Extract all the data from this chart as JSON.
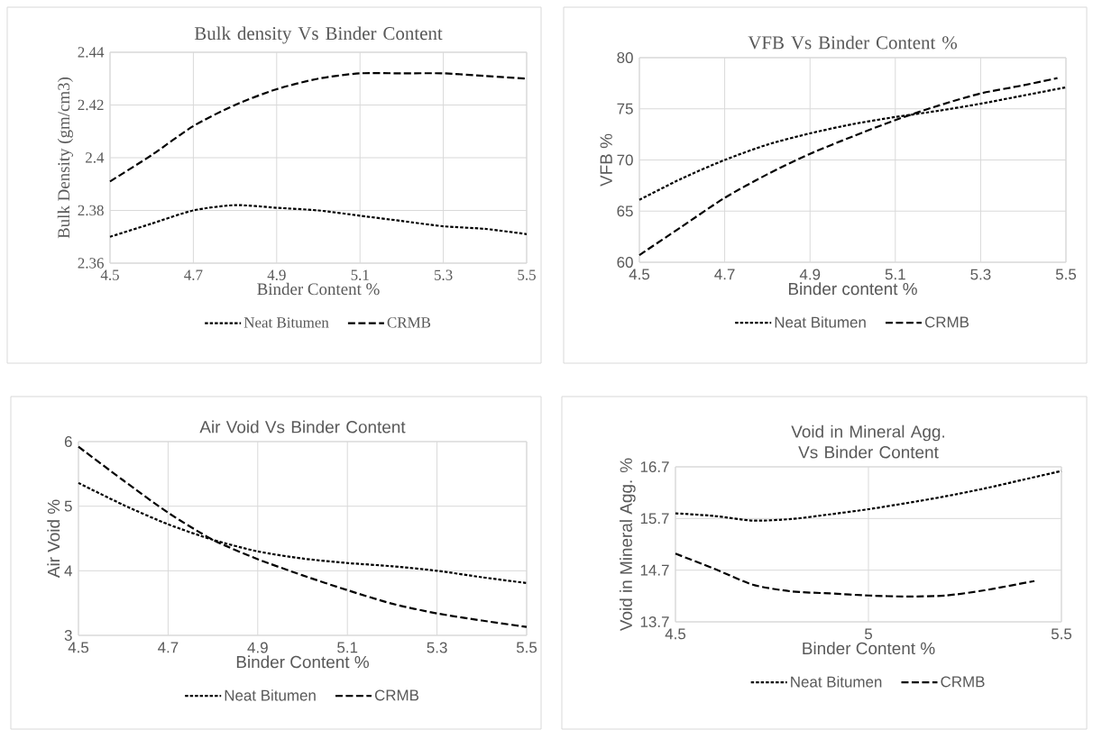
{
  "chart_data": [
    {
      "type": "line",
      "title": "Bulk density Vs Binder Content",
      "xlabel": "Binder Content %",
      "ylabel": "Bulk Density (gm/cm3)",
      "x": [
        4.5,
        4.6,
        4.7,
        4.8,
        4.9,
        5.0,
        5.1,
        5.2,
        5.3,
        5.4,
        5.5
      ],
      "xlim": [
        4.5,
        5.5
      ],
      "xticks": [
        4.5,
        4.7,
        4.9,
        5.1,
        5.3,
        5.5
      ],
      "ylim": [
        2.36,
        2.44
      ],
      "yticks": [
        2.36,
        2.38,
        2.4,
        2.42,
        2.44
      ],
      "grid": true,
      "legend": "bottom",
      "series": [
        {
          "name": "Neat Bitumen",
          "color": "#000000",
          "line_style": "dotted",
          "values": [
            2.37,
            2.375,
            2.38,
            2.382,
            2.381,
            2.38,
            2.378,
            2.376,
            2.374,
            2.373,
            2.371
          ]
        },
        {
          "name": "CRMB",
          "color": "#000000",
          "line_style": "dashed",
          "values": [
            2.391,
            2.401,
            2.412,
            2.42,
            2.426,
            2.43,
            2.432,
            2.432,
            2.432,
            2.431,
            2.43
          ]
        }
      ]
    },
    {
      "type": "line",
      "title": "VFB Vs Binder Content %",
      "xlabel": "Binder content %",
      "ylabel": "VFB %",
      "x": [
        4.5,
        4.6,
        4.7,
        4.8,
        4.9,
        5.0,
        5.1,
        5.2,
        5.3,
        5.4,
        5.5
      ],
      "xlim": [
        4.5,
        5.5
      ],
      "xticks": [
        4.5,
        4.7,
        4.9,
        5.1,
        5.3,
        5.5
      ],
      "ylim": [
        60,
        80
      ],
      "yticks": [
        60,
        65,
        70,
        75,
        80
      ],
      "grid": true,
      "legend": "bottom",
      "series": [
        {
          "name": "Neat Bitumen",
          "color": "#000000",
          "line_style": "dotted",
          "values": [
            66.1,
            68.2,
            70.0,
            71.5,
            72.6,
            73.5,
            74.2,
            74.8,
            75.5,
            76.3,
            77.1
          ]
        },
        {
          "name": "CRMB",
          "color": "#000000",
          "line_style": "dashed",
          "x": [
            4.5,
            4.6,
            4.7,
            4.8,
            4.9,
            5.0,
            5.1,
            5.2,
            5.3,
            5.4,
            5.48
          ],
          "values": [
            60.7,
            63.5,
            66.3,
            68.6,
            70.6,
            72.3,
            73.9,
            75.3,
            76.5,
            77.3,
            78.0
          ]
        }
      ]
    },
    {
      "type": "line",
      "title": "Air Void Vs Binder Content",
      "xlabel": "Binder Content %",
      "ylabel": "Air Void %",
      "x": [
        4.5,
        4.6,
        4.7,
        4.8,
        4.9,
        5.0,
        5.1,
        5.2,
        5.3,
        5.4,
        5.5
      ],
      "xlim": [
        4.5,
        5.5
      ],
      "xticks": [
        4.5,
        4.7,
        4.9,
        5.1,
        5.3,
        5.5
      ],
      "ylim": [
        3,
        6
      ],
      "yticks": [
        3,
        4,
        5,
        6
      ],
      "grid": true,
      "legend": "bottom",
      "series": [
        {
          "name": "Neat Bitumen",
          "color": "#000000",
          "line_style": "dotted",
          "values": [
            5.36,
            5.02,
            4.72,
            4.48,
            4.3,
            4.19,
            4.12,
            4.07,
            4.0,
            3.9,
            3.81
          ]
        },
        {
          "name": "CRMB",
          "color": "#000000",
          "line_style": "dashed",
          "values": [
            5.92,
            5.4,
            4.9,
            4.48,
            4.18,
            3.93,
            3.7,
            3.49,
            3.34,
            3.23,
            3.13
          ]
        }
      ]
    },
    {
      "type": "line",
      "title": "Void in Mineral Agg. Vs Binder Content",
      "xlabel": "Binder Content %",
      "ylabel": "Void in Mineral Agg. %",
      "x": [
        4.5,
        4.6,
        4.7,
        4.8,
        4.9,
        5.0,
        5.1,
        5.2,
        5.3,
        5.4,
        5.5
      ],
      "xlim": [
        4.5,
        5.5
      ],
      "xticks": [
        4.5,
        5,
        5.5
      ],
      "ylim": [
        13.7,
        16.7
      ],
      "yticks": [
        13.7,
        14.7,
        15.7,
        16.7
      ],
      "grid": true,
      "legend": "bottom",
      "series": [
        {
          "name": "Neat Bitumen",
          "color": "#000000",
          "line_style": "dotted",
          "values": [
            15.8,
            15.75,
            15.66,
            15.69,
            15.78,
            15.88,
            16.0,
            16.13,
            16.28,
            16.45,
            16.62
          ]
        },
        {
          "name": "CRMB",
          "color": "#000000",
          "line_style": "dashed",
          "x": [
            4.5,
            4.6,
            4.7,
            4.8,
            4.9,
            5.0,
            5.1,
            5.2,
            5.3,
            5.43
          ],
          "values": [
            15.02,
            14.73,
            14.42,
            14.29,
            14.25,
            14.21,
            14.19,
            14.21,
            14.31,
            14.49
          ]
        }
      ]
    }
  ]
}
